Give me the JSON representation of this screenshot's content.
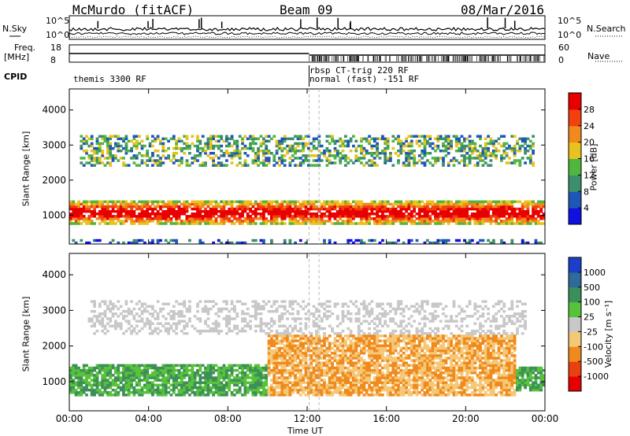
{
  "header": {
    "station": "McMurdo (fitACF)",
    "beam": "Beam 09",
    "date": "08/Mar/2016"
  },
  "strip": {
    "nsky_label": "N.Sky",
    "nsearch_label": "N.Search",
    "noise_ticks_left": [
      "10^5",
      "10^0"
    ],
    "noise_ticks_right": [
      "10^5",
      "10^0"
    ],
    "freq_label": "Freq.",
    "freq_unit": "[MHz]",
    "freq_ticks": [
      "18",
      "8"
    ],
    "nave_label": "Nave",
    "nave_ticks": [
      "60",
      "0"
    ],
    "cpid_label": "CPID",
    "cpid_entries": [
      {
        "text": "themis 3300 RF",
        "start_hour": 0
      },
      {
        "text": "rbsp CT-trig 220 RF",
        "start_hour": 12.1
      },
      {
        "text": "normal (fast) -151 RF",
        "start_hour": 12.1
      }
    ]
  },
  "chart_data": [
    {
      "type": "heatmap",
      "name": "power",
      "ylabel": "Slant Range [km]",
      "y_ticks": [
        "1000",
        "2000",
        "3000",
        "4000"
      ],
      "ylim": [
        180,
        4600
      ],
      "xlim": [
        0,
        24
      ],
      "colorbar_label": "Power [dB]",
      "colorbar_ticks": [
        "4",
        "8",
        "12",
        "16",
        "20",
        "24",
        "28"
      ],
      "colorbar_range": [
        0,
        30
      ],
      "colors": [
        "#1010e0",
        "#1f57b8",
        "#3d8f6c",
        "#4fb63f",
        "#e8c21e",
        "#f08a1d",
        "#f2400f",
        "#e80000"
      ],
      "bands": [
        {
          "range_km": [
            700,
            1450
          ],
          "hours": [
            0,
            24
          ],
          "level": "high"
        },
        {
          "range_km": [
            2400,
            3300
          ],
          "hours": [
            0.5,
            23.5
          ],
          "level": "medium"
        },
        {
          "range_km": [
            200,
            350
          ],
          "hours": [
            0,
            24
          ],
          "level": "low"
        }
      ]
    },
    {
      "type": "heatmap",
      "name": "velocity",
      "ylabel": "Slant Range [km]",
      "y_ticks": [
        "1000",
        "2000",
        "3000",
        "4000"
      ],
      "ylim": [
        180,
        4600
      ],
      "xlim": [
        0,
        24
      ],
      "colorbar_label": "Velocity [m s⁻¹]",
      "colorbar_ticks": [
        "1000",
        "500",
        "100",
        "25",
        "-25",
        "-100",
        "-500",
        "-1000"
      ],
      "colors": [
        "#1c3fc8",
        "#2e6a9a",
        "#3d8f5a",
        "#58c23a",
        "#c8c8c8",
        "#f5c878",
        "#f08a1d",
        "#e84010",
        "#e80000"
      ],
      "segments": [
        {
          "hours": [
            0,
            10
          ],
          "range_km": [
            600,
            1500
          ],
          "velocity_class": "positive"
        },
        {
          "hours": [
            10,
            22.5
          ],
          "range_km": [
            600,
            2300
          ],
          "velocity_class": "negative"
        },
        {
          "hours": [
            22.5,
            24
          ],
          "range_km": [
            700,
            1400
          ],
          "velocity_class": "positive"
        },
        {
          "hours": [
            1,
            23
          ],
          "range_km": [
            2300,
            3300
          ],
          "velocity_class": "near-zero"
        }
      ]
    }
  ],
  "x_axis": {
    "ticks": [
      "00:00",
      "04:00",
      "08:00",
      "12:00",
      "16:00",
      "20:00",
      "00:00"
    ],
    "label": "Time UT"
  }
}
